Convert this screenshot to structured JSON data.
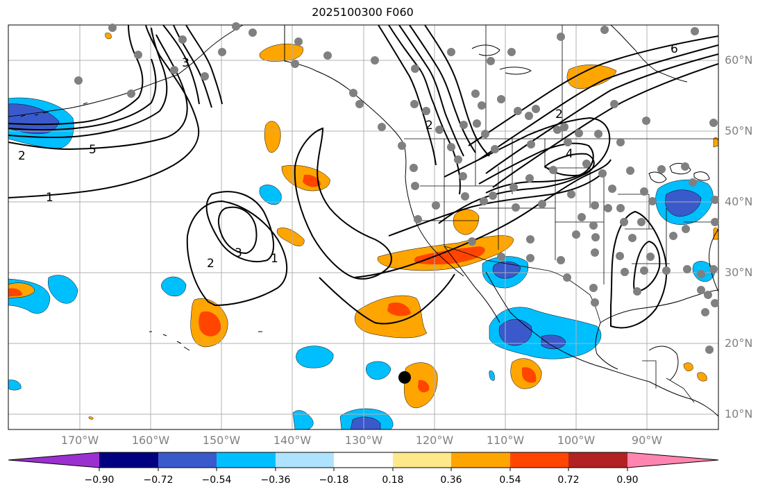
{
  "title": "2025100300 F060",
  "lat_labels": [
    "60°N",
    "50°N",
    "40°N",
    "30°N",
    "20°N",
    "10°N"
  ],
  "lon_labels": [
    "170°W",
    "160°W",
    "150°W",
    "140°W",
    "130°W",
    "120°W",
    "110°W",
    "100°W",
    "90°W"
  ],
  "contour_labels": [
    "1",
    "2",
    "3",
    "4",
    "5",
    "6"
  ],
  "colorbar": {
    "ticks": [
      "−0.90",
      "−0.72",
      "−0.54",
      "−0.36",
      "−0.18",
      "0.18",
      "0.36",
      "0.54",
      "0.72",
      "0.90"
    ],
    "colors": [
      "#9b30d0",
      "#000080",
      "#3a5acc",
      "#00bfff",
      "#aee3ff",
      "#ffffff",
      "#ffe88a",
      "#ffa500",
      "#ff4500",
      "#b22222",
      "#ff85b0"
    ]
  },
  "shading": {
    "neg_inner": "#3a5acc",
    "neg_outer": "#00bfff",
    "pos_outer": "#ffa500",
    "pos_inner": "#ff4500"
  },
  "marker_color": "#808080",
  "storm_marker": "#000000"
}
